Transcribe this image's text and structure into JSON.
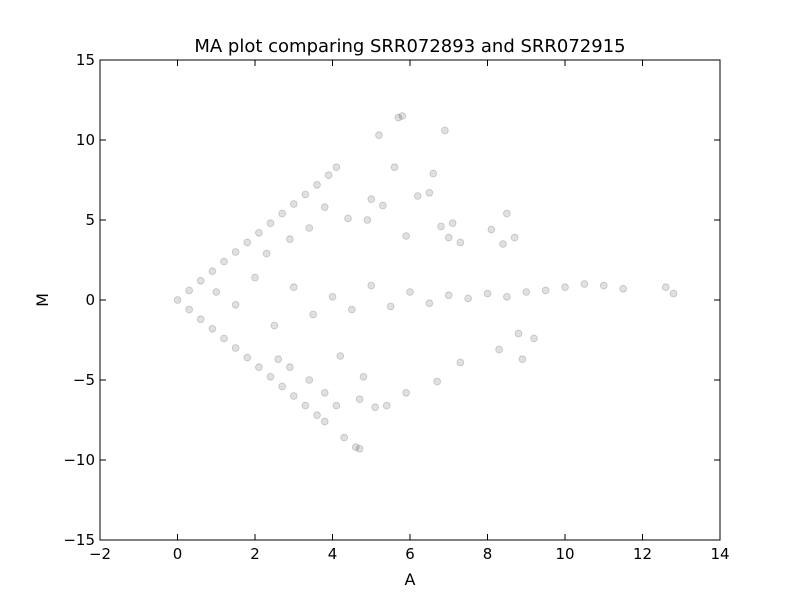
{
  "chart_data": {
    "type": "scatter",
    "title": "MA plot comparing SRR072893 and SRR072915",
    "xlabel": "A",
    "ylabel": "M",
    "xlim": [
      -2,
      14
    ],
    "ylim": [
      -15,
      15
    ],
    "xticks": [
      -2,
      0,
      2,
      4,
      6,
      8,
      10,
      12,
      14
    ],
    "yticks": [
      -15,
      -10,
      -5,
      0,
      5,
      10,
      15
    ],
    "xtick_labels": [
      "−2",
      "0",
      "2",
      "4",
      "6",
      "8",
      "10",
      "12",
      "14"
    ],
    "ytick_labels": [
      "−15",
      "−10",
      "−5",
      "0",
      "5",
      "10",
      "15"
    ],
    "grid": false,
    "marker_color": "#000000",
    "marker_alpha": 0.12,
    "series": [
      {
        "points": [
          [
            0.0,
            0.0
          ],
          [
            0.3,
            0.6
          ],
          [
            0.6,
            1.2
          ],
          [
            0.9,
            1.8
          ],
          [
            1.2,
            2.4
          ],
          [
            1.5,
            3.0
          ],
          [
            1.8,
            3.6
          ],
          [
            2.1,
            4.2
          ],
          [
            2.4,
            4.8
          ],
          [
            2.7,
            5.4
          ],
          [
            3.0,
            6.0
          ],
          [
            3.3,
            6.6
          ],
          [
            3.6,
            7.2
          ],
          [
            3.9,
            7.8
          ],
          [
            4.1,
            8.3
          ],
          [
            0.3,
            -0.6
          ],
          [
            0.6,
            -1.2
          ],
          [
            0.9,
            -1.8
          ],
          [
            1.2,
            -2.4
          ],
          [
            1.5,
            -3.0
          ],
          [
            1.8,
            -3.6
          ],
          [
            2.1,
            -4.2
          ],
          [
            2.4,
            -4.8
          ],
          [
            2.7,
            -5.4
          ],
          [
            3.0,
            -6.0
          ],
          [
            3.3,
            -6.6
          ],
          [
            3.6,
            -7.2
          ],
          [
            3.8,
            -7.6
          ],
          [
            4.3,
            -8.6
          ],
          [
            4.6,
            -9.2
          ],
          [
            4.7,
            -9.3
          ],
          [
            5.2,
            10.3
          ],
          [
            5.7,
            11.4
          ],
          [
            5.8,
            11.5
          ],
          [
            6.9,
            10.6
          ],
          [
            6.6,
            7.9
          ],
          [
            5.6,
            8.3
          ],
          [
            6.2,
            6.5
          ],
          [
            6.5,
            6.7
          ],
          [
            7.1,
            4.8
          ],
          [
            8.1,
            4.4
          ],
          [
            8.5,
            5.4
          ],
          [
            8.4,
            3.5
          ],
          [
            7.3,
            3.6
          ],
          [
            7.0,
            3.9
          ],
          [
            8.7,
            3.9
          ],
          [
            6.8,
            4.6
          ],
          [
            5.9,
            4.0
          ],
          [
            5.0,
            6.3
          ],
          [
            1.0,
            0.5
          ],
          [
            1.5,
            -0.3
          ],
          [
            2.0,
            1.4
          ],
          [
            2.5,
            -1.6
          ],
          [
            3.0,
            0.8
          ],
          [
            3.5,
            -0.9
          ],
          [
            4.0,
            0.2
          ],
          [
            4.5,
            -0.6
          ],
          [
            5.0,
            0.9
          ],
          [
            5.5,
            -0.4
          ],
          [
            6.0,
            0.5
          ],
          [
            6.5,
            -0.2
          ],
          [
            7.0,
            0.3
          ],
          [
            7.5,
            0.1
          ],
          [
            8.0,
            0.4
          ],
          [
            8.5,
            0.2
          ],
          [
            9.0,
            0.5
          ],
          [
            9.5,
            0.6
          ],
          [
            10.0,
            0.8
          ],
          [
            10.5,
            1.0
          ],
          [
            11.0,
            0.9
          ],
          [
            11.5,
            0.7
          ],
          [
            12.6,
            0.8
          ],
          [
            12.8,
            0.4
          ],
          [
            4.2,
            -3.5
          ],
          [
            4.8,
            -4.8
          ],
          [
            5.4,
            -6.6
          ],
          [
            5.1,
            -6.7
          ],
          [
            4.7,
            -6.2
          ],
          [
            5.9,
            -5.8
          ],
          [
            6.7,
            -5.1
          ],
          [
            7.3,
            -3.9
          ],
          [
            8.3,
            -3.1
          ],
          [
            8.9,
            -3.7
          ],
          [
            9.2,
            -2.4
          ],
          [
            8.8,
            -2.1
          ],
          [
            4.1,
            -6.6
          ],
          [
            3.8,
            -5.8
          ],
          [
            3.4,
            -5.0
          ],
          [
            2.9,
            -4.2
          ],
          [
            2.6,
            -3.7
          ],
          [
            2.3,
            2.9
          ],
          [
            2.9,
            3.8
          ],
          [
            3.4,
            4.5
          ],
          [
            3.8,
            5.8
          ],
          [
            4.4,
            5.1
          ],
          [
            4.9,
            5.0
          ],
          [
            5.3,
            5.9
          ]
        ]
      }
    ]
  }
}
